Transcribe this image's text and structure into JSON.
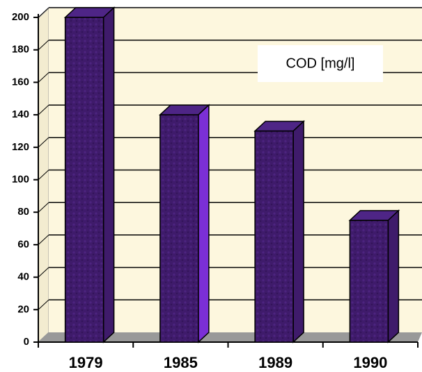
{
  "chart_data": {
    "type": "bar3d",
    "categories": [
      "1979",
      "1985",
      "1989",
      "1990"
    ],
    "series": [
      {
        "name": "COD [mg/l]",
        "color": "#3f1b6b",
        "values": [
          200,
          140,
          130,
          75
        ]
      }
    ],
    "ylim": [
      0,
      200
    ],
    "yticks": [
      0,
      20,
      40,
      60,
      80,
      100,
      120,
      140,
      160,
      180,
      200
    ],
    "grid": true
  }
}
